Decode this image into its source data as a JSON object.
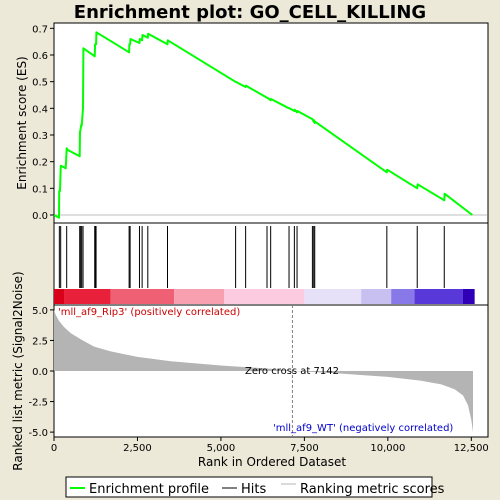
{
  "chart_data": {
    "type": "line",
    "title": "Enrichment plot: GO_CELL_KILLING",
    "es_panel": {
      "ylabel": "Enrichment score (ES)",
      "ylim": [
        -0.03,
        0.72
      ],
      "yticks": [
        0.0,
        0.1,
        0.2,
        0.3,
        0.4,
        0.5,
        0.6,
        0.7
      ],
      "ytick_labels": [
        "0.0",
        "0.1",
        "0.2",
        "0.3",
        "0.4",
        "0.5",
        "0.6",
        "0.7"
      ],
      "series": [
        {
          "name": "Enrichment profile",
          "color": "#00ff00",
          "x": [
            0,
            150,
            155,
            180,
            200,
            205,
            350,
            380,
            400,
            770,
            780,
            820,
            830,
            870,
            880,
            1220,
            1230,
            1260,
            1270,
            2250,
            2260,
            2280,
            2290,
            2560,
            2570,
            2640,
            2650,
            2810,
            2820,
            3400,
            3410,
            5430,
            5440,
            5740,
            5750,
            6380,
            6390,
            6490,
            6500,
            7040,
            7050,
            7200,
            7210,
            7280,
            7290,
            7730,
            7740,
            7780,
            7790,
            7810,
            7820,
            9970,
            9980,
            10880,
            10890,
            11690,
            11700,
            12530
          ],
          "y": [
            0.0,
            -0.01,
            0.09,
            0.09,
            0.18,
            0.185,
            0.175,
            0.25,
            0.245,
            0.22,
            0.31,
            0.34,
            0.335,
            0.4,
            0.625,
            0.595,
            0.64,
            0.64,
            0.685,
            0.61,
            0.64,
            0.64,
            0.66,
            0.645,
            0.66,
            0.655,
            0.675,
            0.665,
            0.68,
            0.64,
            0.655,
            0.5,
            0.5,
            0.48,
            0.485,
            0.44,
            0.44,
            0.43,
            0.435,
            0.4,
            0.4,
            0.39,
            0.395,
            0.385,
            0.39,
            0.36,
            0.36,
            0.35,
            0.355,
            0.345,
            0.35,
            0.16,
            0.17,
            0.1,
            0.115,
            0.055,
            0.08,
            0.0
          ]
        }
      ]
    },
    "hits_panel": {
      "positions": [
        160,
        200,
        380,
        770,
        800,
        830,
        870,
        1220,
        1240,
        1260,
        2250,
        2280,
        2560,
        2640,
        2810,
        3400,
        5440,
        5740,
        6380,
        6490,
        7040,
        7200,
        7280,
        7740,
        7780,
        7810,
        9970,
        10880,
        11690
      ]
    },
    "color_bar": {
      "segments": [
        {
          "x0": 0,
          "x1": 300,
          "color": "#d9001a"
        },
        {
          "x0": 300,
          "x1": 1700,
          "color": "#e8203a"
        },
        {
          "x0": 1700,
          "x1": 3600,
          "color": "#f06074"
        },
        {
          "x0": 3600,
          "x1": 5100,
          "color": "#f8a0b0"
        },
        {
          "x0": 5100,
          "x1": 7500,
          "color": "#fccbe0"
        },
        {
          "x0": 7500,
          "x1": 9200,
          "color": "#e6e0f8"
        },
        {
          "x0": 9200,
          "x1": 10100,
          "color": "#c8c0f0"
        },
        {
          "x0": 10100,
          "x1": 10800,
          "color": "#8878e8"
        },
        {
          "x0": 10800,
          "x1": 12250,
          "color": "#5838d8"
        },
        {
          "x0": 12250,
          "x1": 12600,
          "color": "#3000b8"
        }
      ]
    },
    "metric_panel": {
      "ylabel": "Ranked list metric (Signal2Noise)",
      "xlabel": "Rank in Ordered Dataset",
      "ylim": [
        -5.4,
        5.4
      ],
      "yticks": [
        -5.0,
        -2.5,
        0.0,
        2.5,
        5.0
      ],
      "ytick_labels": [
        "-5.0",
        "-2.5",
        "0.0",
        "2.5",
        "5.0"
      ],
      "xlim": [
        0,
        13000
      ],
      "xticks": [
        0,
        2500,
        5000,
        7500,
        10000,
        12500
      ],
      "xtick_labels": [
        "0",
        "2,500",
        "5,000",
        "7,500",
        "10,000",
        "12,500"
      ],
      "series": [
        {
          "color": "#b4b4b4",
          "x": [
            0,
            50,
            150,
            300,
            500,
            800,
            1200,
            1700,
            2500,
            3500,
            5000,
            6500,
            7142,
            8500,
            10000,
            11000,
            11600,
            12000,
            12250,
            12400,
            12500,
            12550
          ],
          "y": [
            5.0,
            4.6,
            4.1,
            3.6,
            3.1,
            2.6,
            2.0,
            1.6,
            1.15,
            0.8,
            0.45,
            0.18,
            0.0,
            -0.2,
            -0.48,
            -0.8,
            -1.1,
            -1.5,
            -2.0,
            -2.8,
            -4.0,
            -5.0
          ]
        }
      ],
      "zero_cross": 7142
    },
    "annotations": {
      "positive": "'mll_af9_Rip3' (positively correlated)",
      "zero_cross": "Zero cross at 7142",
      "negative": "'mll_af9_WT' (negatively correlated)"
    },
    "legend": {
      "placement": "bottom",
      "entries": [
        {
          "label": "Enrichment profile",
          "color": "#00ff00"
        },
        {
          "label": "Hits",
          "color": "#000000"
        },
        {
          "label": "Ranking metric scores",
          "color": "#b4b4b4"
        }
      ]
    }
  }
}
